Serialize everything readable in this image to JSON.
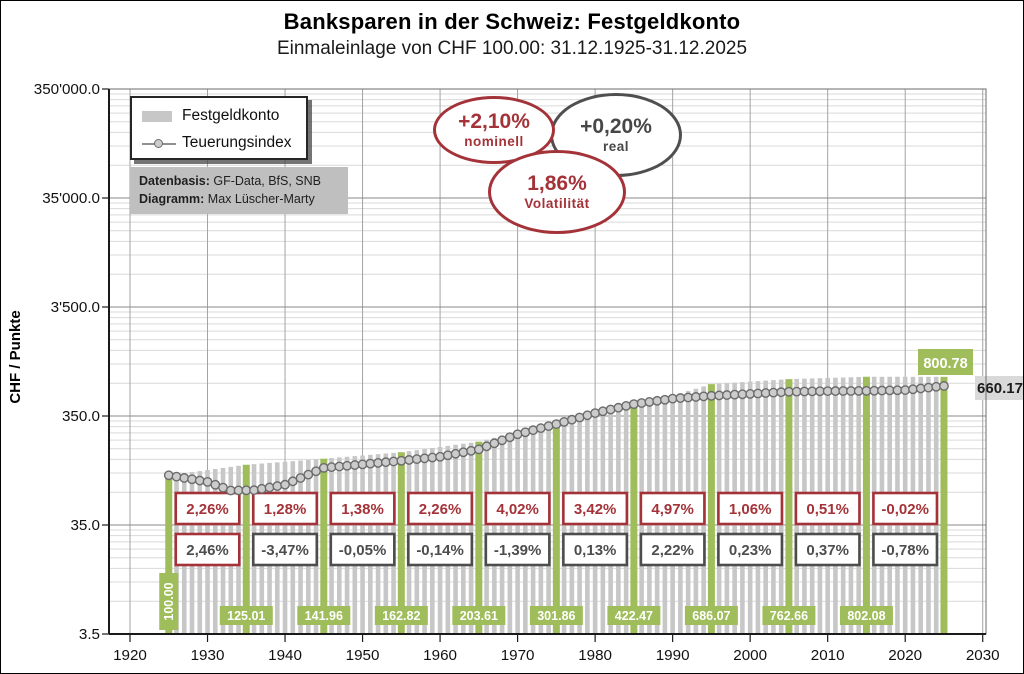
{
  "header": {
    "title": "Banksparen in der Schweiz: Festgeldkonto",
    "subtitle": "Einmaleinlage von CHF 100.00: 31.12.1925-31.12.2025"
  },
  "legend": {
    "items": [
      {
        "label": "Festgeldkonto",
        "swatch": "bar"
      },
      {
        "label": "Teuerungsindex",
        "swatch": "line-marker"
      }
    ]
  },
  "source_box": {
    "line1_label": "Datenbasis:",
    "line1_value": "GF-Data, BfS, SNB",
    "line2_label": "Diagramm:",
    "line2_value": "Max Lüscher-Marty"
  },
  "ovals": {
    "nominal": {
      "value": "+2,10%",
      "label": "nominell"
    },
    "real": {
      "value": "+0,20%",
      "label": "real"
    },
    "volatility": {
      "value": "1,86%",
      "label": "Volatilität"
    }
  },
  "colors": {
    "green": "#a0bd5b",
    "bar_gray": "#c7c7c7",
    "red": "#a43339",
    "dark_gray": "#4d4d4d",
    "grid_minor": "#d9d9d9",
    "grid_major": "#8a8a8a",
    "grid_vertical": "#a3a3a3",
    "axis": "#1a1a1a",
    "marker_fill": "#cccccc",
    "marker_stroke": "#6b6b6b",
    "line_gray": "#9b9b9b",
    "teuerung_badge_bg": "#d9d9d9"
  },
  "chart_data": {
    "type": "bar",
    "scale_y": "log",
    "ylabel": "CHF / Punkte",
    "y_ticks": [
      {
        "label": "350'000.0",
        "value": 350000
      },
      {
        "label": "35'000.0",
        "value": 35000
      },
      {
        "label": "3'500.0",
        "value": 3500
      },
      {
        "label": "350.0",
        "value": 350
      },
      {
        "label": "35.0",
        "value": 35
      },
      {
        "label": "3.5",
        "value": 3.5
      }
    ],
    "x_ticks": [
      1920,
      1930,
      1940,
      1950,
      1960,
      1970,
      1980,
      1990,
      2000,
      2010,
      2020,
      2030
    ],
    "series": [
      {
        "name": "Festgeldkonto",
        "type": "bar",
        "decade_anchors": [
          [
            1925,
            100.0
          ],
          [
            1935,
            125.01
          ],
          [
            1945,
            141.96
          ],
          [
            1955,
            162.82
          ],
          [
            1965,
            203.61
          ],
          [
            1975,
            301.86
          ],
          [
            1985,
            422.47
          ],
          [
            1995,
            686.07
          ],
          [
            2005,
            762.66
          ],
          [
            2015,
            802.08
          ],
          [
            2025,
            800.78
          ]
        ]
      },
      {
        "name": "Teuerungsindex",
        "type": "line",
        "anchors_estimated": [
          [
            1925,
            100
          ],
          [
            1930,
            87
          ],
          [
            1933,
            72.5
          ],
          [
            1936,
            73
          ],
          [
            1940,
            82
          ],
          [
            1945,
            117
          ],
          [
            1950,
            126
          ],
          [
            1955,
            136
          ],
          [
            1960,
            148
          ],
          [
            1965,
            173
          ],
          [
            1970,
            238
          ],
          [
            1975,
            295
          ],
          [
            1980,
            372
          ],
          [
            1985,
            450
          ],
          [
            1990,
            505
          ],
          [
            1995,
            536
          ],
          [
            2000,
            558
          ],
          [
            2005,
            584
          ],
          [
            2010,
            592
          ],
          [
            2015,
            595
          ],
          [
            2020,
            605
          ],
          [
            2025,
            660.17
          ]
        ]
      }
    ],
    "decade_returns_nominal": [
      "2,26%",
      "1,28%",
      "1,38%",
      "2,26%",
      "4,02%",
      "3,42%",
      "4,97%",
      "1,06%",
      "0,51%",
      "-0,02%"
    ],
    "decade_returns_real": [
      "2,46%",
      "-3,47%",
      "-0,05%",
      "-0,14%",
      "-1,39%",
      "0,13%",
      "2,22%",
      "0,23%",
      "0,37%",
      "-0,78%"
    ],
    "decade_value_badges": [
      {
        "year": 1925,
        "label": "100.00",
        "vertical": true
      },
      {
        "year": 1935,
        "label": "125.01"
      },
      {
        "year": 1945,
        "label": "141.96"
      },
      {
        "year": 1955,
        "label": "162.82"
      },
      {
        "year": 1965,
        "label": "203.61"
      },
      {
        "year": 1975,
        "label": "301.86"
      },
      {
        "year": 1985,
        "label": "422.47"
      },
      {
        "year": 1995,
        "label": "686.07"
      },
      {
        "year": 2005,
        "label": "762.66"
      },
      {
        "year": 2015,
        "label": "802.08"
      }
    ],
    "end_labels": {
      "festgeldkonto": "800.78",
      "teuerungsindex": "660.17"
    }
  }
}
